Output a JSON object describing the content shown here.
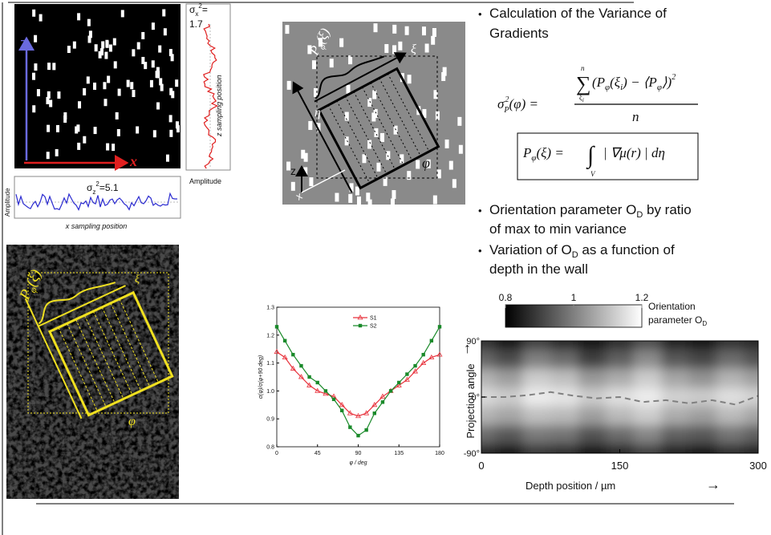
{
  "slide": {
    "top_left": {
      "axis_z": "z",
      "axis_x": "x",
      "sigma_x": {
        "symbol": "σ",
        "sub": "x",
        "sup": "2",
        "eq": "=",
        "value": 1.7
      },
      "z_sampling": "z sampling position",
      "amplitude_right": "Amplitude",
      "sigma_z": {
        "symbol": "σ",
        "sub": "z",
        "sup": "2",
        "eq": "=",
        "value": 5.1
      },
      "amplitude_left": "Amplitude",
      "x_sampling": "x sampling position"
    },
    "top_middle": {
      "projection": {
        "base": "P",
        "sub": "φ",
        "arg": "(ξ)"
      },
      "xi": "ξ",
      "eta": "η",
      "phi": "φ",
      "axis_z": "z",
      "axis_x": "x"
    },
    "bottom_left": {
      "projection": {
        "base": "P",
        "sub": "φ",
        "arg": "(ξ)"
      },
      "xi": "ξ",
      "phi": "φ"
    },
    "bullets": [
      {
        "lines": [
          "Calculation of the Variance of",
          "Gradients"
        ]
      },
      {
        "before": "Orientation parameter O",
        "sub": "D",
        "after": " by ratio",
        "line2": "of max to min variance"
      },
      {
        "before": "Variation of O",
        "sub": "D",
        "after": " as a function of",
        "line2": "depth in the wall"
      }
    ],
    "formula_variance": {
      "lhs": "σ",
      "lhs_sup": "2",
      "lhs_sub": "P",
      "lhs_arg": "(φ) =",
      "sum": "∑",
      "sum_top": "n",
      "sum_bottom": "ξ",
      "sum_bottom_sub": "i",
      "num_open": "(P",
      "num_p_sub": "φ",
      "num_mid": "(ξ",
      "num_xi_sub": "i",
      "num_minus": ") − ⟨P",
      "num_avg_sub": "φ",
      "num_close": "⟩)",
      "num_sup": "2",
      "denominator": "n"
    },
    "formula_projection": {
      "lhs": "P",
      "lhs_sub": "φ",
      "lhs_arg": "(ξ) =",
      "integral": "∫",
      "int_bottom": "V",
      "integrand": "| ∇μ(r) | dη"
    }
  },
  "chart_data": [
    {
      "type": "line",
      "xlabel": "φ / deg",
      "ylabel": "σ(φ)/σ(φ+90 deg)",
      "x": [
        0,
        9,
        18,
        27,
        36,
        45,
        54,
        63,
        72,
        81,
        90,
        99,
        108,
        117,
        126,
        135,
        144,
        153,
        162,
        171,
        180
      ],
      "series": [
        {
          "name": "S1",
          "color": "#e8323c",
          "marker": "triangle-open",
          "values": [
            1.14,
            1.12,
            1.08,
            1.05,
            1.02,
            1.0,
            0.99,
            0.98,
            0.95,
            0.92,
            0.91,
            0.92,
            0.95,
            0.98,
            1.0,
            1.02,
            1.04,
            1.07,
            1.1,
            1.12,
            1.13
          ]
        },
        {
          "name": "S2",
          "color": "#1a8a2a",
          "marker": "square",
          "values": [
            1.23,
            1.18,
            1.13,
            1.09,
            1.05,
            1.03,
            1.0,
            0.97,
            0.93,
            0.87,
            0.84,
            0.86,
            0.92,
            0.96,
            1.0,
            1.03,
            1.06,
            1.09,
            1.13,
            1.18,
            1.23
          ]
        }
      ],
      "xlim": [
        0,
        180
      ],
      "ylim": [
        0.8,
        1.3
      ],
      "xticks": [
        0,
        45,
        90,
        135,
        180
      ],
      "yticks": [
        0.8,
        0.9,
        {
          "value": 1,
          "label": "1.0"
        },
        1.1,
        1.2,
        1.3
      ]
    },
    {
      "type": "heatmap",
      "xlabel": "Depth position / µm",
      "ylabel": "Projection angle",
      "x": [
        0,
        30,
        60,
        90,
        120,
        150,
        180,
        210,
        240,
        270,
        300
      ],
      "y": [
        90,
        60,
        30,
        0,
        -30,
        -60,
        -90
      ],
      "values": [
        [
          0.88,
          0.84,
          0.9,
          0.86,
          0.83,
          0.87,
          0.92,
          0.85,
          0.84,
          0.88,
          0.86
        ],
        [
          0.96,
          0.92,
          1.0,
          0.97,
          0.9,
          0.95,
          1.02,
          0.94,
          0.91,
          0.97,
          0.93
        ],
        [
          1.08,
          1.05,
          1.12,
          1.1,
          1.04,
          1.07,
          1.12,
          1.06,
          1.03,
          1.08,
          1.05
        ],
        [
          1.14,
          1.12,
          1.17,
          1.16,
          1.12,
          1.15,
          1.17,
          1.13,
          1.12,
          1.15,
          1.13
        ],
        [
          1.08,
          1.06,
          1.1,
          1.09,
          1.05,
          1.09,
          1.12,
          1.07,
          1.05,
          1.09,
          1.06
        ],
        [
          0.97,
          0.94,
          0.99,
          0.98,
          0.93,
          0.97,
          1.01,
          0.95,
          0.94,
          0.98,
          0.95
        ],
        [
          0.86,
          0.84,
          0.89,
          0.87,
          0.83,
          0.86,
          0.9,
          0.85,
          0.83,
          0.87,
          0.85
        ]
      ],
      "xlim": [
        0,
        300
      ],
      "ylim": [
        -90,
        90
      ],
      "xticks": [
        0,
        150,
        300
      ],
      "yticks": [
        {
          "value": 90,
          "label": "90°"
        },
        {
          "value": 0,
          "label": "0°"
        },
        {
          "value": -90,
          "label": "-90°"
        }
      ],
      "line": {
        "x": [
          0,
          25,
          50,
          75,
          100,
          125,
          150,
          175,
          200,
          225,
          250,
          275,
          300
        ],
        "values": [
          0,
          0,
          3,
          8,
          2,
          -2,
          0,
          -8,
          -5,
          -10,
          -5,
          -12,
          2
        ],
        "color": "#808080"
      },
      "colorbar": {
        "lim": [
          0.8,
          1.2
        ],
        "ticks": [
          0.8,
          1,
          1.2
        ],
        "colors": [
          "#000000",
          "#ffffff"
        ],
        "label": "Orientation",
        "label2": "parameter O",
        "label_sub": "D"
      }
    }
  ]
}
